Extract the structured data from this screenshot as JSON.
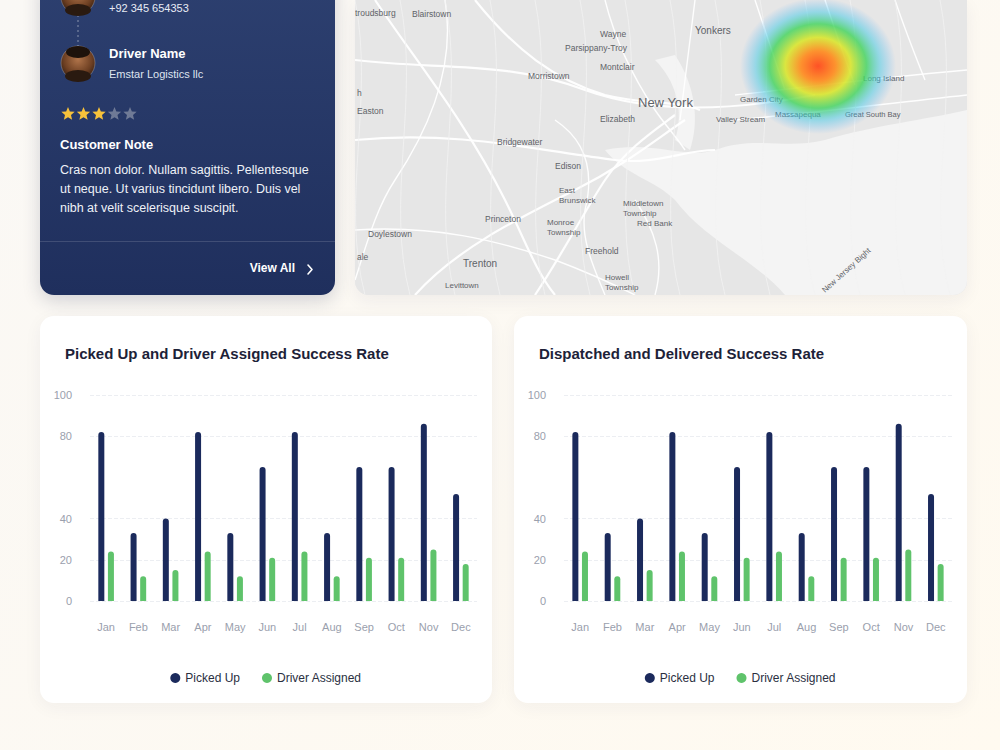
{
  "driver_card": {
    "phone": "+92 345 654353",
    "driver_name": "Driver Name",
    "company": "Emstar Logistics llc",
    "rating": 3,
    "rating_max": 5,
    "note_title": "Customer Note",
    "note": "Cras non dolor. Nullam sagittis. Pellentesque ut neque. Ut varius tincidunt libero. Duis vel nibh at velit scelerisque suscipit.",
    "link": "View All"
  },
  "map": {
    "labels": [
      "troudsburg",
      "Blairstown",
      "Wayne",
      "Yonkers",
      "Parsippany-Troy",
      "Montclair",
      "Morristown",
      "New York",
      "Garden City",
      "Long Island",
      "Elizabeth",
      "Valley Stream",
      "Massapequa",
      "Great South Bay",
      "h",
      "Easton",
      "Bridgewater",
      "Edison",
      "East Brunswick",
      "Middletown Township",
      "Red Bank",
      "Princeton",
      "Monroe Township",
      "Doylestown",
      "Freehold",
      "Trenton",
      "Howell Township",
      "Levittown",
      "ale",
      "New Jersey Bight"
    ]
  },
  "chart_data": [
    {
      "type": "bar",
      "title": "Picked Up and Driver Assigned Success Rate",
      "categories": [
        "Jan",
        "Feb",
        "Mar",
        "Apr",
        "May",
        "Jun",
        "Jul",
        "Aug",
        "Sep",
        "Oct",
        "Nov",
        "Dec"
      ],
      "series": [
        {
          "name": "Picked Up",
          "color": "#1b2a5c",
          "values": [
            82,
            33,
            40,
            82,
            33,
            65,
            82,
            33,
            65,
            65,
            86,
            52
          ]
        },
        {
          "name": "Driver Assigned",
          "color": "#5fc36b",
          "values": [
            24,
            12,
            15,
            24,
            12,
            21,
            24,
            12,
            21,
            21,
            25,
            18
          ]
        }
      ],
      "ylim": [
        0,
        100
      ],
      "yticks": [
        0,
        20,
        40,
        80,
        100
      ],
      "grid": true,
      "legend": "bottom"
    },
    {
      "type": "bar",
      "title": "Dispatched and Delivered Success Rate",
      "categories": [
        "Jan",
        "Feb",
        "Mar",
        "Apr",
        "May",
        "Jun",
        "Jul",
        "Aug",
        "Sep",
        "Oct",
        "Nov",
        "Dec"
      ],
      "series": [
        {
          "name": "Picked Up",
          "color": "#1b2a5c",
          "values": [
            82,
            33,
            40,
            82,
            33,
            65,
            82,
            33,
            65,
            65,
            86,
            52
          ]
        },
        {
          "name": "Driver Assigned",
          "color": "#5fc36b",
          "values": [
            24,
            12,
            15,
            24,
            12,
            21,
            24,
            12,
            21,
            21,
            25,
            18
          ]
        }
      ],
      "ylim": [
        0,
        100
      ],
      "yticks": [
        0,
        20,
        40,
        80,
        100
      ],
      "grid": true,
      "legend": "bottom"
    }
  ]
}
